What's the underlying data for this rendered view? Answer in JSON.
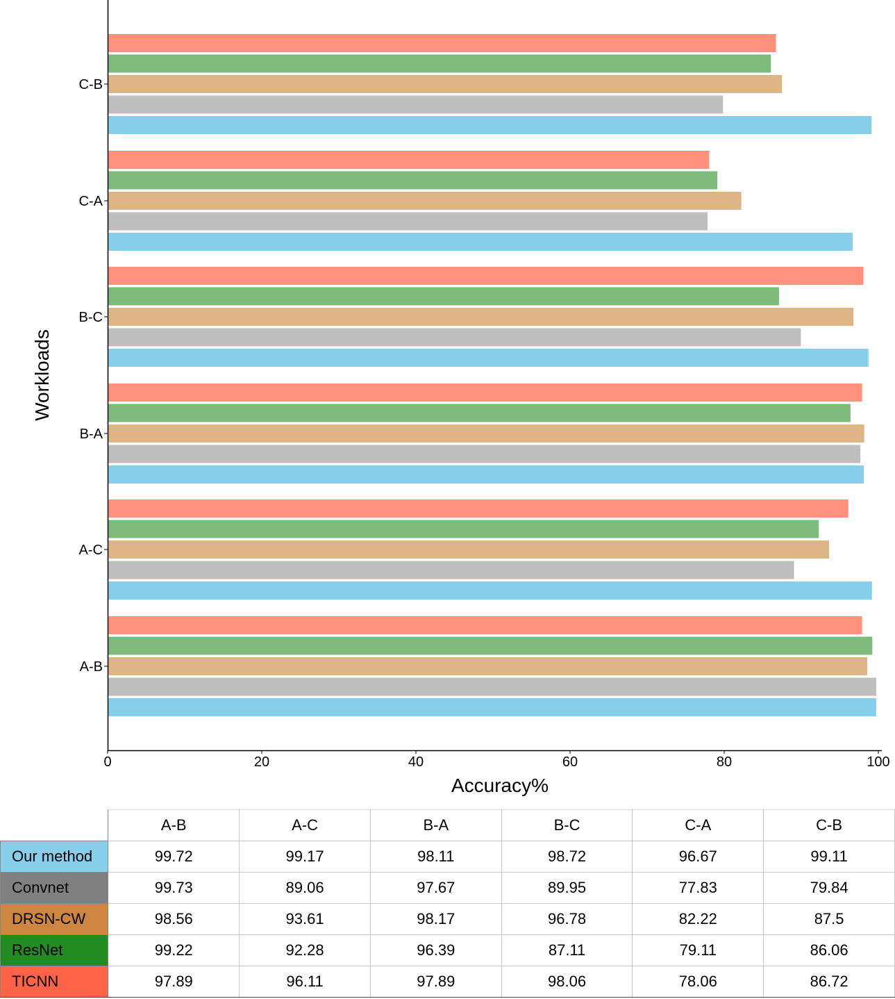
{
  "chart_data": {
    "type": "bar",
    "orientation": "horizontal",
    "title": "",
    "xlabel": "Accuracy%",
    "ylabel": "Workloads",
    "xlim": [
      0,
      100
    ],
    "xticks": [
      0,
      20,
      40,
      60,
      80,
      100
    ],
    "grid": false,
    "categories": [
      "A-B",
      "A-C",
      "B-A",
      "B-C",
      "C-A",
      "C-B"
    ],
    "series": [
      {
        "name": "Our method",
        "bar_color": "#87CEEB",
        "table_color": "#87CEEB",
        "values": [
          99.72,
          99.17,
          98.11,
          98.72,
          96.67,
          99.11
        ]
      },
      {
        "name": "Convnet",
        "bar_color": "#BEBEBE",
        "table_color": "#808080",
        "values": [
          99.73,
          89.06,
          97.67,
          89.95,
          77.83,
          79.84
        ]
      },
      {
        "name": "DRSN-CW",
        "bar_color": "#DEB587",
        "table_color": "#CD853F",
        "values": [
          98.56,
          93.61,
          98.17,
          96.78,
          82.22,
          87.5
        ]
      },
      {
        "name": "ResNet",
        "bar_color": "#7DBA7B",
        "table_color": "#228B22",
        "values": [
          99.22,
          92.28,
          96.39,
          87.11,
          79.11,
          86.06
        ]
      },
      {
        "name": "TICNN",
        "bar_color": "#FF917E",
        "table_color": "#FF6347",
        "values": [
          97.89,
          96.11,
          97.89,
          98.06,
          78.06,
          86.72
        ]
      }
    ],
    "table": {
      "columns": [
        "A-B",
        "A-C",
        "B-A",
        "B-C",
        "C-A",
        "C-B"
      ],
      "rows": [
        {
          "label": "Our method",
          "values": [
            "99.72",
            "99.17",
            "98.11",
            "98.72",
            "96.67",
            "99.11"
          ]
        },
        {
          "label": "Convnet",
          "values": [
            "99.73",
            "89.06",
            "97.67",
            "89.95",
            "77.83",
            "79.84"
          ]
        },
        {
          "label": "DRSN-CW",
          "values": [
            "98.56",
            "93.61",
            "98.17",
            "96.78",
            "82.22",
            "87.5"
          ]
        },
        {
          "label": "ResNet",
          "values": [
            "99.22",
            "92.28",
            "96.39",
            "87.11",
            "79.11",
            "86.06"
          ]
        },
        {
          "label": "TICNN",
          "values": [
            "97.89",
            "96.11",
            "97.89",
            "98.06",
            "78.06",
            "86.72"
          ]
        }
      ]
    }
  }
}
